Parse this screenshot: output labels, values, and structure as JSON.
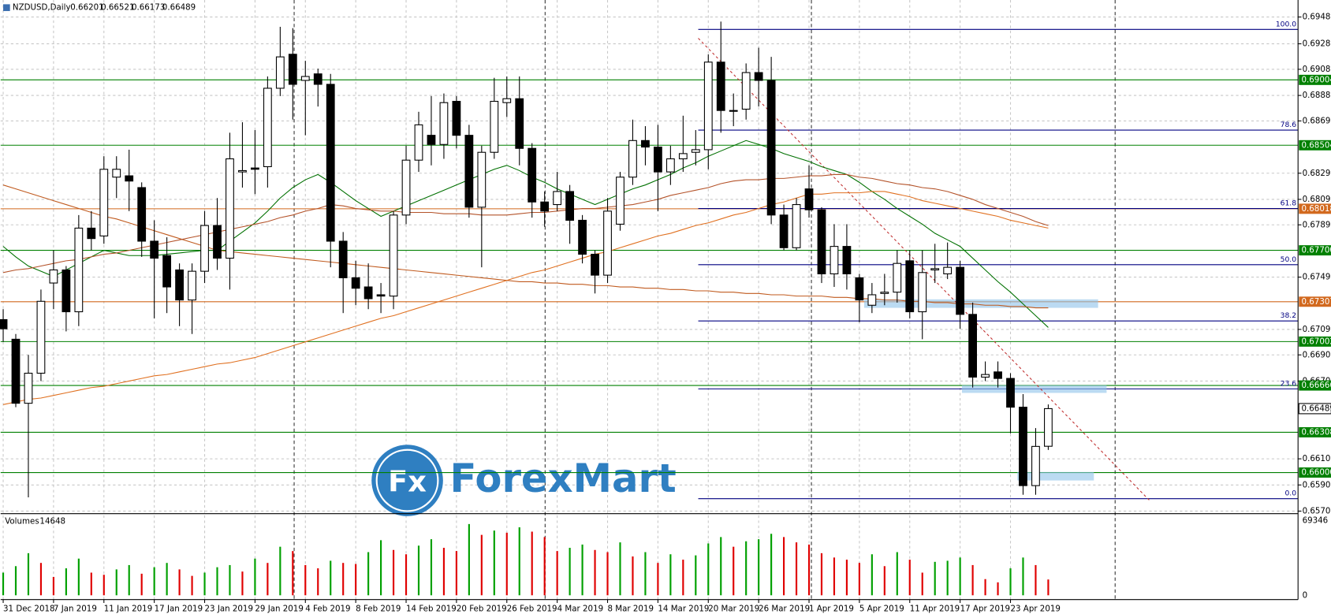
{
  "chart_data": {
    "type": "candlestick",
    "title": "NZDUSD,Daily",
    "categories": [
      "31 Dec 2018",
      null,
      null,
      null,
      "7 Jan 2019",
      null,
      null,
      null,
      "11 Jan 2019",
      null,
      null,
      null,
      "17 Jan 2019",
      null,
      null,
      null,
      "23 Jan 2019",
      null,
      null,
      null,
      "29 Jan 2019",
      null,
      null,
      null,
      "4 Feb 2019",
      null,
      null,
      null,
      "8 Feb 2019",
      null,
      null,
      null,
      "14 Feb 2019",
      null,
      null,
      null,
      "20 Feb 2019",
      null,
      null,
      null,
      "26 Feb 2019",
      null,
      null,
      null,
      "4 Mar 2019",
      null,
      null,
      null,
      "8 Mar 2019",
      null,
      null,
      null,
      "14 Mar 2019",
      null,
      null,
      null,
      "20 Mar 2019",
      null,
      null,
      null,
      "26 Mar 2019",
      null,
      null,
      null,
      "1 Apr 2019",
      null,
      null,
      null,
      "5 Apr 2019",
      null,
      null,
      null,
      "11 Apr 2019",
      null,
      null,
      null,
      "17 Apr 2019",
      null,
      null,
      null,
      "23 Apr 2019",
      null,
      null,
      null
    ],
    "candles": [
      [
        0.6717,
        0.6725,
        0.67,
        0.671
      ],
      [
        0.6702,
        0.6706,
        0.665,
        0.6653
      ],
      [
        0.6653,
        0.669,
        0.6581,
        0.6676
      ],
      [
        0.6676,
        0.674,
        0.667,
        0.6731
      ],
      [
        0.6745,
        0.677,
        0.6725,
        0.6755
      ],
      [
        0.6755,
        0.6758,
        0.6708,
        0.6723
      ],
      [
        0.6723,
        0.6797,
        0.6712,
        0.6787
      ],
      [
        0.6787,
        0.68,
        0.677,
        0.6779
      ],
      [
        0.6781,
        0.6842,
        0.6775,
        0.6832
      ],
      [
        0.6826,
        0.6842,
        0.681,
        0.6832
      ],
      [
        0.6827,
        0.6847,
        0.68,
        0.6823
      ],
      [
        0.6818,
        0.6822,
        0.6765,
        0.6777
      ],
      [
        0.6777,
        0.6793,
        0.6718,
        0.6764
      ],
      [
        0.6766,
        0.678,
        0.6722,
        0.6742
      ],
      [
        0.6755,
        0.676,
        0.6712,
        0.6732
      ],
      [
        0.6732,
        0.676,
        0.6706,
        0.6754
      ],
      [
        0.6754,
        0.68,
        0.6745,
        0.6789
      ],
      [
        0.6789,
        0.681,
        0.6755,
        0.6764
      ],
      [
        0.6764,
        0.686,
        0.674,
        0.684
      ],
      [
        0.683,
        0.6868,
        0.6818,
        0.6831
      ],
      [
        0.6833,
        0.6862,
        0.6813,
        0.6832
      ],
      [
        0.6834,
        0.6903,
        0.6818,
        0.6894
      ],
      [
        0.6894,
        0.6941,
        0.6888,
        0.6918
      ],
      [
        0.692,
        0.694,
        0.687,
        0.6897
      ],
      [
        0.69,
        0.6915,
        0.6858,
        0.6903
      ],
      [
        0.6905,
        0.6909,
        0.688,
        0.6897
      ],
      [
        0.6897,
        0.6905,
        0.6757,
        0.6777
      ],
      [
        0.6777,
        0.6784,
        0.6722,
        0.6749
      ],
      [
        0.6749,
        0.6762,
        0.6728,
        0.6741
      ],
      [
        0.6742,
        0.676,
        0.6725,
        0.6733
      ],
      [
        0.6736,
        0.6745,
        0.6722,
        0.6735
      ],
      [
        0.6735,
        0.68,
        0.6725,
        0.6797
      ],
      [
        0.6797,
        0.685,
        0.679,
        0.6839
      ],
      [
        0.6839,
        0.6876,
        0.683,
        0.6866
      ],
      [
        0.6858,
        0.6888,
        0.6835,
        0.6851
      ],
      [
        0.6851,
        0.689,
        0.684,
        0.6883
      ],
      [
        0.6884,
        0.6888,
        0.6848,
        0.6858
      ],
      [
        0.6858,
        0.6866,
        0.6795,
        0.6803
      ],
      [
        0.6803,
        0.685,
        0.6757,
        0.6845
      ],
      [
        0.6845,
        0.6902,
        0.684,
        0.6884
      ],
      [
        0.6883,
        0.6903,
        0.6872,
        0.6886
      ],
      [
        0.6886,
        0.6903,
        0.6835,
        0.6848
      ],
      [
        0.6848,
        0.6852,
        0.6795,
        0.6807
      ],
      [
        0.6807,
        0.6815,
        0.6788,
        0.68
      ],
      [
        0.6805,
        0.683,
        0.68,
        0.6815
      ],
      [
        0.6815,
        0.682,
        0.6775,
        0.6793
      ],
      [
        0.6793,
        0.6797,
        0.676,
        0.6767
      ],
      [
        0.6767,
        0.677,
        0.6737,
        0.6751
      ],
      [
        0.6751,
        0.681,
        0.6745,
        0.68
      ],
      [
        0.679,
        0.683,
        0.6785,
        0.6826
      ],
      [
        0.6826,
        0.687,
        0.682,
        0.6854
      ],
      [
        0.6854,
        0.6865,
        0.6835,
        0.6849
      ],
      [
        0.6849,
        0.6866,
        0.68,
        0.683
      ],
      [
        0.683,
        0.685,
        0.682,
        0.684
      ],
      [
        0.684,
        0.6873,
        0.683,
        0.6844
      ],
      [
        0.6845,
        0.6862,
        0.6835,
        0.6847
      ],
      [
        0.6847,
        0.692,
        0.6832,
        0.6914
      ],
      [
        0.6914,
        0.6945,
        0.686,
        0.6877
      ],
      [
        0.6877,
        0.689,
        0.6865,
        0.6877
      ],
      [
        0.6878,
        0.6913,
        0.687,
        0.6906
      ],
      [
        0.6906,
        0.6925,
        0.688,
        0.69
      ],
      [
        0.69,
        0.6918,
        0.679,
        0.6797
      ],
      [
        0.6797,
        0.6805,
        0.677,
        0.6772
      ],
      [
        0.6772,
        0.681,
        0.677,
        0.6805
      ],
      [
        0.6817,
        0.6835,
        0.6795,
        0.6801
      ],
      [
        0.6801,
        0.6803,
        0.6745,
        0.6752
      ],
      [
        0.6752,
        0.679,
        0.6742,
        0.6773
      ],
      [
        0.6773,
        0.679,
        0.674,
        0.6752
      ],
      [
        0.6749,
        0.6752,
        0.6715,
        0.6732
      ],
      [
        0.6728,
        0.6745,
        0.6722,
        0.6736
      ],
      [
        0.6737,
        0.6752,
        0.6728,
        0.6738
      ],
      [
        0.6738,
        0.677,
        0.673,
        0.676
      ],
      [
        0.6762,
        0.677,
        0.6718,
        0.6723
      ],
      [
        0.6723,
        0.677,
        0.6702,
        0.6753
      ],
      [
        0.6755,
        0.6775,
        0.6745,
        0.6756
      ],
      [
        0.6752,
        0.6776,
        0.6748,
        0.6757
      ],
      [
        0.6757,
        0.6762,
        0.671,
        0.6721
      ],
      [
        0.6721,
        0.673,
        0.6665,
        0.6673
      ],
      [
        0.6673,
        0.6685,
        0.667,
        0.6675
      ],
      [
        0.6677,
        0.6685,
        0.6665,
        0.6672
      ],
      [
        0.6672,
        0.6676,
        0.663,
        0.665
      ],
      [
        0.665,
        0.666,
        0.6583,
        0.659
      ],
      [
        0.659,
        0.6634,
        0.6583,
        0.662
      ],
      [
        0.66201,
        0.66521,
        0.66173,
        0.66489
      ]
    ],
    "up_color": "#ffffff",
    "down_color": "#000000",
    "moving_averages": [
      {
        "color": "#007000",
        "values": [
          0.6773,
          0.6765,
          0.6758,
          0.6754,
          0.675,
          0.6755,
          0.676,
          0.6765,
          0.677,
          0.6768,
          0.6766,
          0.6766,
          0.6766,
          0.6767,
          0.6768,
          0.6769,
          0.677,
          0.677,
          0.6777,
          0.6784,
          0.6791,
          0.68,
          0.681,
          0.6818,
          0.6824,
          0.6828,
          0.6822,
          0.6815,
          0.6808,
          0.6802,
          0.6796,
          0.68,
          0.6804,
          0.6808,
          0.6812,
          0.6816,
          0.682,
          0.6824,
          0.6828,
          0.6832,
          0.6835,
          0.6831,
          0.6826,
          0.6822,
          0.6817,
          0.6813,
          0.6809,
          0.6805,
          0.6809,
          0.6813,
          0.6817,
          0.682,
          0.6824,
          0.6828,
          0.6833,
          0.6837,
          0.6842,
          0.6846,
          0.685,
          0.6854,
          0.6851,
          0.6848,
          0.6844,
          0.6841,
          0.6838,
          0.6834,
          0.6831,
          0.6828,
          0.6822,
          0.6815,
          0.6809,
          0.6802,
          0.6796,
          0.679,
          0.6783,
          0.6778,
          0.6773,
          0.6764,
          0.6755,
          0.6746,
          0.6738,
          0.6729,
          0.672,
          0.6711
        ]
      },
      {
        "color": "#c05a1e",
        "values": [
          0.682,
          0.6817,
          0.6814,
          0.6811,
          0.6808,
          0.6805,
          0.6802,
          0.6799,
          0.6796,
          0.6794,
          0.6791,
          0.6788,
          0.6785,
          0.6782,
          0.6779,
          0.6776,
          0.6773,
          0.677,
          0.6769,
          0.6768,
          0.6767,
          0.6766,
          0.6765,
          0.6764,
          0.6763,
          0.6762,
          0.6761,
          0.676,
          0.6759,
          0.6758,
          0.6757,
          0.6756,
          0.6755,
          0.6754,
          0.6753,
          0.6752,
          0.6751,
          0.675,
          0.6749,
          0.6748,
          0.6747,
          0.6746,
          0.6746,
          0.6745,
          0.6745,
          0.6744,
          0.6744,
          0.6743,
          0.6743,
          0.6742,
          0.6742,
          0.6741,
          0.6741,
          0.674,
          0.674,
          0.6739,
          0.6739,
          0.6738,
          0.6738,
          0.6737,
          0.6737,
          0.6736,
          0.6736,
          0.6735,
          0.6735,
          0.6735,
          0.6734,
          0.6734,
          0.6733,
          0.6733,
          0.6732,
          0.6732,
          0.6731,
          0.6731,
          0.673,
          0.673,
          0.6729,
          0.6729,
          0.6728,
          0.6728,
          0.6727,
          0.6727,
          0.6726,
          0.6726
        ]
      },
      {
        "color": "#b4532a",
        "values": [
          0.6753,
          0.6755,
          0.6756,
          0.6758,
          0.676,
          0.6762,
          0.6763,
          0.6765,
          0.6767,
          0.6768,
          0.677,
          0.6772,
          0.6774,
          0.6776,
          0.6778,
          0.678,
          0.6782,
          0.6784,
          0.6786,
          0.6788,
          0.679,
          0.6792,
          0.6795,
          0.6797,
          0.68,
          0.6802,
          0.6805,
          0.6804,
          0.6802,
          0.6801,
          0.68,
          0.68,
          0.6799,
          0.6799,
          0.6799,
          0.6798,
          0.6798,
          0.6798,
          0.6797,
          0.6797,
          0.6797,
          0.6798,
          0.6799,
          0.6799,
          0.68,
          0.6801,
          0.6802,
          0.6802,
          0.6803,
          0.6804,
          0.6805,
          0.6807,
          0.6809,
          0.6812,
          0.6814,
          0.6816,
          0.6818,
          0.6821,
          0.6823,
          0.6824,
          0.6824,
          0.6825,
          0.6825,
          0.6826,
          0.6827,
          0.6827,
          0.6828,
          0.6828,
          0.6826,
          0.6825,
          0.6823,
          0.6821,
          0.682,
          0.6818,
          0.6817,
          0.6815,
          0.6812,
          0.6809,
          0.6805,
          0.6802,
          0.6799,
          0.6796,
          0.6792,
          0.6789
        ]
      },
      {
        "color": "#e07020",
        "values": [
          0.6652,
          0.6654,
          0.6656,
          0.6657,
          0.6659,
          0.6661,
          0.6663,
          0.6665,
          0.6666,
          0.6668,
          0.667,
          0.6672,
          0.6674,
          0.6675,
          0.6677,
          0.6679,
          0.6681,
          0.6683,
          0.6684,
          0.6686,
          0.6688,
          0.6691,
          0.6694,
          0.6697,
          0.67,
          0.6703,
          0.6706,
          0.6709,
          0.6712,
          0.6715,
          0.6718,
          0.672,
          0.6723,
          0.6726,
          0.6729,
          0.6732,
          0.6735,
          0.6738,
          0.6741,
          0.6744,
          0.6747,
          0.675,
          0.6753,
          0.6755,
          0.6758,
          0.6761,
          0.6764,
          0.6767,
          0.6769,
          0.6772,
          0.6775,
          0.6778,
          0.6781,
          0.6783,
          0.6786,
          0.6789,
          0.6791,
          0.6794,
          0.6797,
          0.6799,
          0.6802,
          0.6805,
          0.6807,
          0.681,
          0.6813,
          0.6813,
          0.6814,
          0.6814,
          0.6814,
          0.6815,
          0.6815,
          0.6813,
          0.6811,
          0.6808,
          0.6806,
          0.6804,
          0.6802,
          0.68,
          0.6798,
          0.6796,
          0.6793,
          0.6791,
          0.6789,
          0.6787
        ]
      }
    ],
    "ylim": [
      0.65705,
      0.69485
    ],
    "yticks": [
      0.69485,
      {
        "value": 0.6928,
        "label": "0.69280"
      },
      0.69085,
      0.68885,
      {
        "value": 0.6869,
        "label": "0.68690"
      },
      {
        "value": 0.6829,
        "label": "0.68290"
      },
      {
        "value": 0.6809,
        "label": "0.68090"
      },
      0.67895,
      0.67495,
      0.67095,
      {
        "value": 0.669,
        "label": "0.66900"
      },
      {
        "value": 0.667,
        "label": "0.66700"
      },
      0.66105,
      0.65905,
      0.65705
    ],
    "grid": true,
    "levels": [
      {
        "price": 0.69004,
        "color": "#008000"
      },
      {
        "price": 0.68504,
        "color": "#008000"
      },
      {
        "price": 0.68018,
        "color": "#d2691e"
      },
      {
        "price": {
          "value": 0.677,
          "label": "0.67700"
        },
        "color": "#008000"
      },
      {
        "price": 0.67307,
        "color": "#d2691e"
      },
      {
        "price": 0.67002,
        "color": "#008000"
      },
      {
        "price": 0.66666,
        "color": "#008000"
      },
      {
        "price": 0.66308,
        "color": "#008000"
      },
      {
        "price": {
          "value": 0.66,
          "label": "0.66000"
        },
        "color": "#008000"
      }
    ],
    "fib_color": "#000080",
    "fib_levels": [
      {
        "label": "100.0",
        "price": 0.6939
      },
      {
        "label": "78.6",
        "price": 0.6862
      },
      {
        "label": "61.8",
        "price": 0.6802
      },
      {
        "label": "50.0",
        "price": 0.6759
      },
      {
        "label": "38.2",
        "price": 0.6716
      },
      {
        "label": "23.6",
        "price": 0.6664
      },
      {
        "label": "0.0",
        "price": 0.658
      }
    ],
    "volumes": {
      "label": "Volumes",
      "up_color": "#00a000",
      "down_color": "#e00000",
      "ylim": [
        0,
        69346
      ],
      "yticks": [
        69346,
        0
      ],
      "values": [
        21000,
        27000,
        39000,
        30000,
        17000,
        25000,
        34000,
        21000,
        19000,
        24000,
        28000,
        20000,
        26000,
        30000,
        24000,
        18000,
        21000,
        26000,
        28000,
        22000,
        34000,
        30000,
        45000,
        41000,
        28000,
        25000,
        32000,
        30000,
        29000,
        40000,
        51000,
        42000,
        38000,
        46000,
        52000,
        44000,
        41000,
        66000,
        56000,
        60000,
        58000,
        63000,
        59000,
        54000,
        41000,
        44000,
        47000,
        42000,
        40000,
        49000,
        36000,
        40000,
        30000,
        38000,
        33000,
        37000,
        48000,
        54000,
        45000,
        50000,
        52000,
        57000,
        54000,
        49000,
        47000,
        39000,
        35000,
        33000,
        30000,
        38000,
        27000,
        40000,
        33000,
        21000,
        31000,
        32000,
        35000,
        28000,
        15000,
        12000,
        25000,
        35000,
        28000,
        14648
      ]
    }
  },
  "watermark": {
    "icon": "Fx",
    "text": "ForexMart"
  }
}
